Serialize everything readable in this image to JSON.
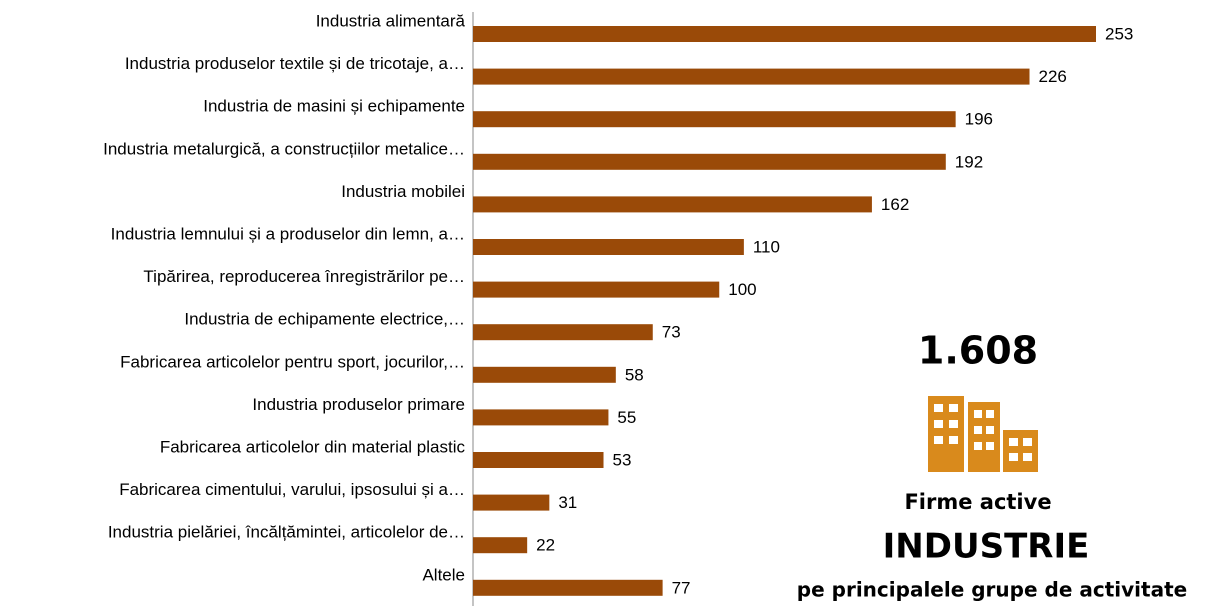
{
  "chart_data": {
    "type": "bar",
    "orientation": "horizontal",
    "categories": [
      "Industria alimentară",
      "Industria produselor textile și de tricotaje, a…",
      "Industria de masini și echipamente",
      "Industria metalurgică, a construcțiilor metalice…",
      "Industria mobilei",
      "Industria lemnului și a produselor din lemn, a…",
      "Tipărirea, reproducerea înregistrărilor pe…",
      "Industria de echipamente electrice,…",
      "Fabricarea articolelor pentru sport, jocurilor,…",
      "Industria produselor primare",
      "Fabricarea articolelor din material plastic",
      "Fabricarea cimentului, varului, ipsosului și a…",
      "Industria pielăriei, încălțămintei, articolelor de…",
      "Altele"
    ],
    "values": [
      253,
      226,
      196,
      192,
      162,
      110,
      100,
      73,
      58,
      55,
      53,
      31,
      22,
      77
    ],
    "color": "#9a4a08",
    "xlim": [
      0,
      253
    ],
    "annotations": {
      "total": "1.608",
      "line1": "Firme active",
      "line2": "INDUSTRIE",
      "line3": "pe principalele grupe de activitate"
    }
  }
}
